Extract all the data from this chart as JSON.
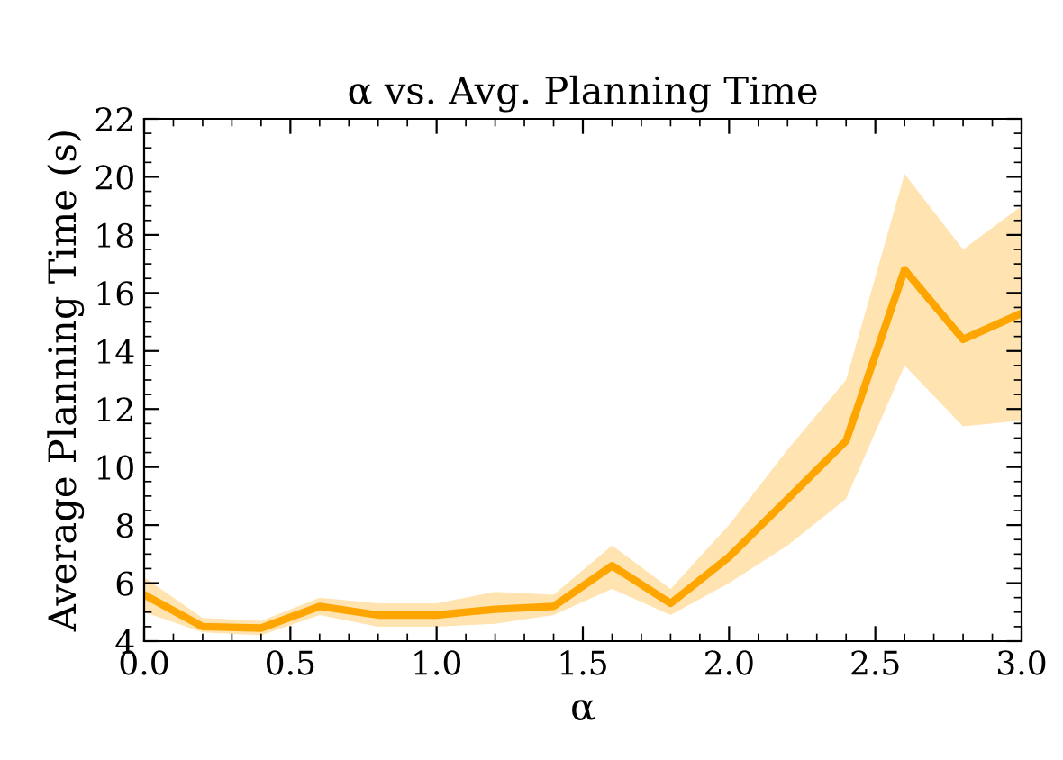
{
  "chart_data": {
    "type": "line",
    "title": "α vs. Avg. Planning Time",
    "xlabel": "α",
    "ylabel": "Average Planning Time (s)",
    "x": [
      0.0,
      0.2,
      0.4,
      0.6,
      0.8,
      1.0,
      1.2,
      1.4,
      1.6,
      1.8,
      2.0,
      2.2,
      2.4,
      2.6,
      2.8,
      3.0
    ],
    "series": [
      {
        "color": "#ffa500",
        "values": [
          5.6,
          4.5,
          4.45,
          5.2,
          4.9,
          4.9,
          5.1,
          5.2,
          6.6,
          5.3,
          6.9,
          8.9,
          10.9,
          16.8,
          14.4,
          15.3
        ],
        "lower": [
          5.0,
          4.3,
          4.2,
          4.9,
          4.5,
          4.5,
          4.6,
          4.9,
          5.8,
          4.9,
          6.0,
          7.3,
          8.9,
          13.5,
          11.4,
          11.6
        ],
        "upper": [
          6.2,
          4.8,
          4.7,
          5.5,
          5.3,
          5.3,
          5.7,
          5.6,
          7.3,
          5.8,
          8.0,
          10.6,
          13.0,
          20.1,
          17.5,
          19.0
        ]
      }
    ],
    "xlim": [
      0,
      3
    ],
    "xticks": [
      {
        "value": 0,
        "label": "0.0"
      },
      {
        "value": 0.5,
        "label": "0.5"
      },
      {
        "value": 1,
        "label": "1.0"
      },
      {
        "value": 1.5,
        "label": "1.5"
      },
      {
        "value": 2,
        "label": "2.0"
      },
      {
        "value": 2.5,
        "label": "2.5"
      },
      {
        "value": 3,
        "label": "3.0"
      }
    ],
    "ylim": [
      4,
      22
    ],
    "yticks": [
      4,
      6,
      8,
      10,
      12,
      14,
      16,
      18,
      20,
      22
    ],
    "grid": false,
    "legend": false,
    "marker": "none",
    "line_style": "solid"
  }
}
